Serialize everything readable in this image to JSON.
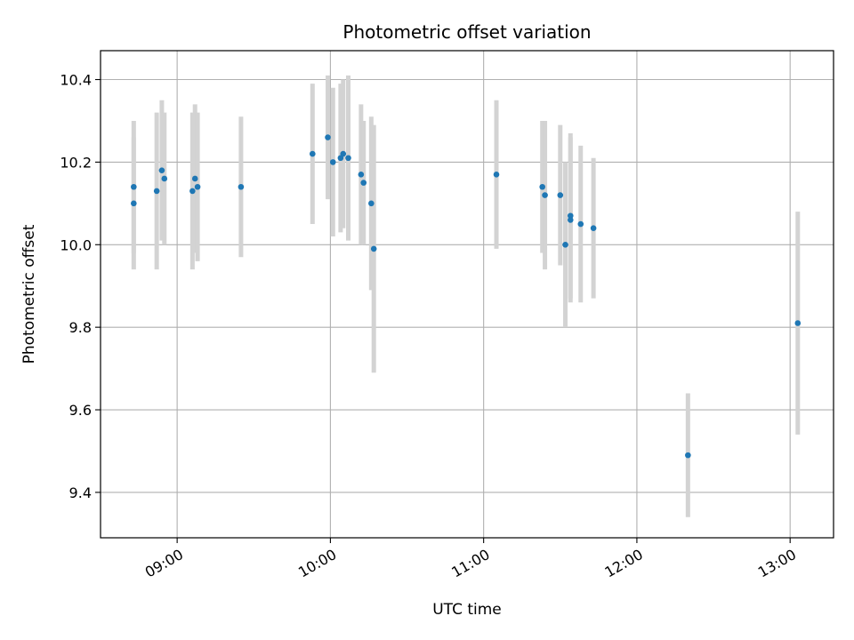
{
  "chart_data": {
    "type": "scatter",
    "title": "Photometric offset variation",
    "xlabel": "UTC time",
    "ylabel": "Photometric offset",
    "grid": true,
    "legend": "none",
    "x_range": [
      "08:30",
      "13:17"
    ],
    "ylim": [
      9.29,
      10.47
    ],
    "x_ticks": [
      "09:00",
      "10:00",
      "11:00",
      "12:00",
      "13:00"
    ],
    "y_ticks": [
      "9.4",
      "9.6",
      "9.8",
      "10.0",
      "10.2",
      "10.4"
    ],
    "y_tick_values": [
      9.4,
      9.6,
      9.8,
      10.0,
      10.2,
      10.4
    ],
    "marker_color": "#1f77b4",
    "errorbar_color": "#d3d3d3",
    "points": [
      {
        "x": "08:43",
        "y": 10.14,
        "yerr": 0.16
      },
      {
        "x": "08:43",
        "y": 10.1,
        "yerr": 0.16
      },
      {
        "x": "08:52",
        "y": 10.13,
        "yerr": 0.19
      },
      {
        "x": "08:54",
        "y": 10.18,
        "yerr": 0.17
      },
      {
        "x": "08:55",
        "y": 10.16,
        "yerr": 0.16
      },
      {
        "x": "09:06",
        "y": 10.13,
        "yerr": 0.19
      },
      {
        "x": "09:07",
        "y": 10.16,
        "yerr": 0.18
      },
      {
        "x": "09:08",
        "y": 10.14,
        "yerr": 0.18
      },
      {
        "x": "09:25",
        "y": 10.14,
        "yerr": 0.17
      },
      {
        "x": "09:53",
        "y": 10.22,
        "yerr": 0.17
      },
      {
        "x": "09:59",
        "y": 10.26,
        "yerr": 0.15
      },
      {
        "x": "10:01",
        "y": 10.2,
        "yerr": 0.18
      },
      {
        "x": "10:04",
        "y": 10.21,
        "yerr": 0.18
      },
      {
        "x": "10:05",
        "y": 10.22,
        "yerr": 0.18
      },
      {
        "x": "10:07",
        "y": 10.21,
        "yerr": 0.2
      },
      {
        "x": "10:12",
        "y": 10.17,
        "yerr": 0.17
      },
      {
        "x": "10:13",
        "y": 10.15,
        "yerr": 0.15
      },
      {
        "x": "10:16",
        "y": 10.1,
        "yerr": 0.21
      },
      {
        "x": "10:17",
        "y": 9.99,
        "yerr": 0.3
      },
      {
        "x": "11:05",
        "y": 10.17,
        "yerr": 0.18
      },
      {
        "x": "11:23",
        "y": 10.14,
        "yerr": 0.16
      },
      {
        "x": "11:24",
        "y": 10.12,
        "yerr": 0.18
      },
      {
        "x": "11:30",
        "y": 10.12,
        "yerr": 0.17
      },
      {
        "x": "11:32",
        "y": 10.0,
        "yerr": 0.2
      },
      {
        "x": "11:34",
        "y": 10.07,
        "yerr": 0.2
      },
      {
        "x": "11:34",
        "y": 10.06,
        "yerr": 0.2
      },
      {
        "x": "11:38",
        "y": 10.05,
        "yerr": 0.19
      },
      {
        "x": "11:43",
        "y": 10.04,
        "yerr": 0.17
      },
      {
        "x": "12:20",
        "y": 9.49,
        "yerr": 0.15
      },
      {
        "x": "13:03",
        "y": 9.81,
        "yerr": 0.27
      }
    ]
  }
}
